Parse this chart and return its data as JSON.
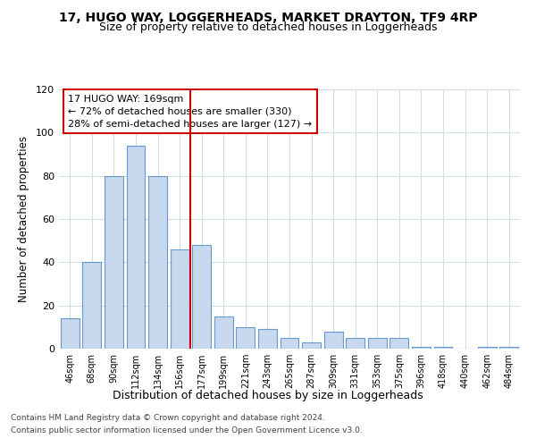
{
  "title1": "17, HUGO WAY, LOGGERHEADS, MARKET DRAYTON, TF9 4RP",
  "title2": "Size of property relative to detached houses in Loggerheads",
  "xlabel": "Distribution of detached houses by size in Loggerheads",
  "ylabel": "Number of detached properties",
  "categories": [
    "46sqm",
    "68sqm",
    "90sqm",
    "112sqm",
    "134sqm",
    "156sqm",
    "177sqm",
    "199sqm",
    "221sqm",
    "243sqm",
    "265sqm",
    "287sqm",
    "309sqm",
    "331sqm",
    "353sqm",
    "375sqm",
    "396sqm",
    "418sqm",
    "440sqm",
    "462sqm",
    "484sqm"
  ],
  "values": [
    14,
    40,
    80,
    94,
    80,
    46,
    48,
    15,
    10,
    9,
    5,
    3,
    8,
    5,
    5,
    5,
    1,
    1,
    0,
    1,
    1
  ],
  "bar_color": "#c8d8ee",
  "bar_edge_color": "#6699cc",
  "vline_x": 5.5,
  "vline_color": "#cc0000",
  "annotation_line1": "17 HUGO WAY: 169sqm",
  "annotation_line2": "← 72% of detached houses are smaller (330)",
  "annotation_line3": "28% of semi-detached houses are larger (127) →",
  "annotation_box_color": "#ffffff",
  "annotation_box_edge": "#cc0000",
  "ylim": [
    0,
    120
  ],
  "yticks": [
    0,
    20,
    40,
    60,
    80,
    100,
    120
  ],
  "footer1": "Contains HM Land Registry data © Crown copyright and database right 2024.",
  "footer2": "Contains public sector information licensed under the Open Government Licence v3.0.",
  "bg_color": "#ffffff",
  "grid_color": "#d0dce8",
  "title1_fontsize": 10,
  "title2_fontsize": 9
}
